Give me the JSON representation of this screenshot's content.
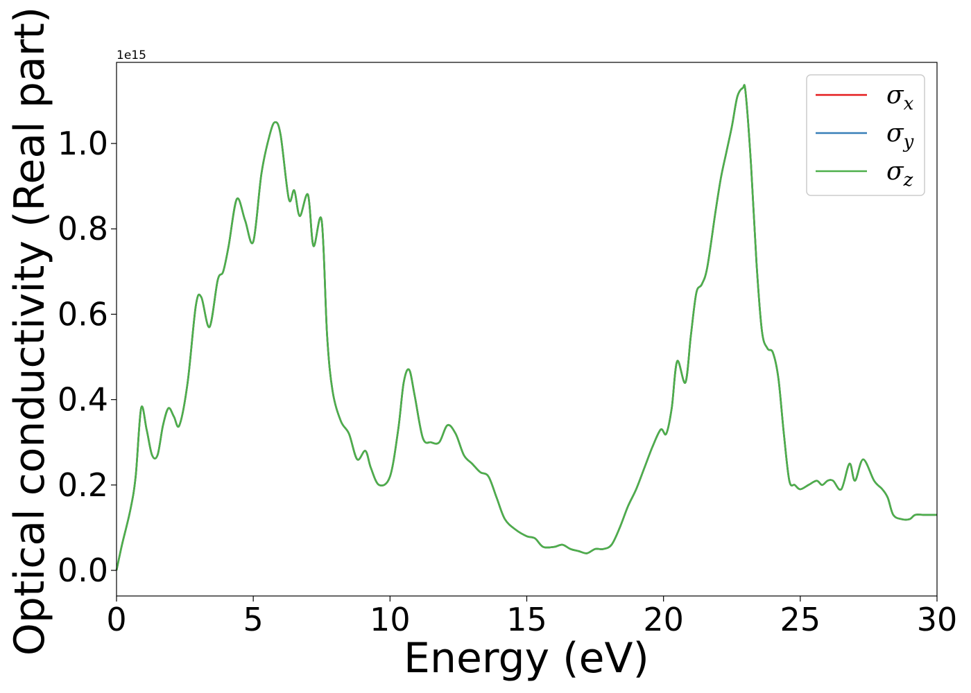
{
  "chart_data": {
    "type": "line",
    "xlabel": "Energy (eV)",
    "ylabel": "Optical conductivity (Real part)",
    "y_offset_label": "1e15",
    "xlim": [
      0,
      30
    ],
    "ylim": [
      -0.06,
      1.19
    ],
    "xticks": [
      0,
      5,
      10,
      15,
      20,
      25,
      30
    ],
    "xtick_labels": [
      "0",
      "5",
      "10",
      "15",
      "20",
      "25",
      "30"
    ],
    "yticks": [
      0.0,
      0.2,
      0.4,
      0.6,
      0.8,
      1.0
    ],
    "ytick_labels": [
      "0.0",
      "0.2",
      "0.4",
      "0.6",
      "0.8",
      "1.0"
    ],
    "grid": false,
    "legend_position": "top-right",
    "series": [
      {
        "name": "x",
        "symbol": "σ",
        "color": "#e41a1c"
      },
      {
        "name": "y",
        "symbol": "σ",
        "color": "#377eb8"
      },
      {
        "name": "z",
        "symbol": "σ",
        "color": "#4daf4a"
      }
    ],
    "x": [
      0,
      0.2,
      0.5,
      0.7,
      0.9,
      1.1,
      1.3,
      1.5,
      1.7,
      1.9,
      2.1,
      2.3,
      2.6,
      2.9,
      3.1,
      3.4,
      3.7,
      3.9,
      4.1,
      4.4,
      4.7,
      5.0,
      5.3,
      5.6,
      5.8,
      6.0,
      6.3,
      6.5,
      6.7,
      7.0,
      7.2,
      7.5,
      7.7,
      7.9,
      8.2,
      8.5,
      8.8,
      9.1,
      9.3,
      9.6,
      10.0,
      10.3,
      10.5,
      10.7,
      10.9,
      11.2,
      11.5,
      11.8,
      12.1,
      12.4,
      12.7,
      13.0,
      13.3,
      13.6,
      13.9,
      14.2,
      14.6,
      15.0,
      15.3,
      15.6,
      16.0,
      16.3,
      16.6,
      16.9,
      17.2,
      17.5,
      17.8,
      18.1,
      18.4,
      18.7,
      19.0,
      19.3,
      19.6,
      19.9,
      20.1,
      20.3,
      20.5,
      20.8,
      21.0,
      21.2,
      21.4,
      21.6,
      21.9,
      22.1,
      22.3,
      22.5,
      22.7,
      22.9,
      23.0,
      23.2,
      23.4,
      23.6,
      23.8,
      24.0,
      24.2,
      24.4,
      24.6,
      24.8,
      25.0,
      25.3,
      25.6,
      25.8,
      26.0,
      26.2,
      26.5,
      26.8,
      27.0,
      27.3,
      27.7,
      28.0,
      28.2,
      28.4,
      28.7,
      29.0,
      29.2,
      29.5,
      29.8,
      30.0
    ],
    "values": [
      0.0,
      0.06,
      0.14,
      0.22,
      0.38,
      0.33,
      0.27,
      0.27,
      0.34,
      0.38,
      0.36,
      0.34,
      0.44,
      0.62,
      0.64,
      0.57,
      0.68,
      0.7,
      0.76,
      0.87,
      0.82,
      0.77,
      0.93,
      1.02,
      1.05,
      1.02,
      0.87,
      0.89,
      0.83,
      0.88,
      0.76,
      0.82,
      0.55,
      0.42,
      0.35,
      0.32,
      0.26,
      0.28,
      0.24,
      0.2,
      0.22,
      0.33,
      0.44,
      0.47,
      0.41,
      0.31,
      0.3,
      0.3,
      0.34,
      0.32,
      0.27,
      0.25,
      0.23,
      0.22,
      0.17,
      0.12,
      0.095,
      0.08,
      0.075,
      0.055,
      0.055,
      0.06,
      0.05,
      0.045,
      0.04,
      0.05,
      0.05,
      0.06,
      0.1,
      0.15,
      0.19,
      0.24,
      0.29,
      0.33,
      0.32,
      0.38,
      0.49,
      0.44,
      0.55,
      0.65,
      0.67,
      0.71,
      0.84,
      0.92,
      0.98,
      1.04,
      1.11,
      1.13,
      1.12,
      0.95,
      0.72,
      0.56,
      0.52,
      0.51,
      0.45,
      0.32,
      0.21,
      0.2,
      0.19,
      0.2,
      0.21,
      0.2,
      0.21,
      0.21,
      0.19,
      0.25,
      0.21,
      0.26,
      0.21,
      0.19,
      0.17,
      0.13,
      0.12,
      0.12,
      0.13,
      0.13,
      0.13,
      0.13
    ]
  }
}
